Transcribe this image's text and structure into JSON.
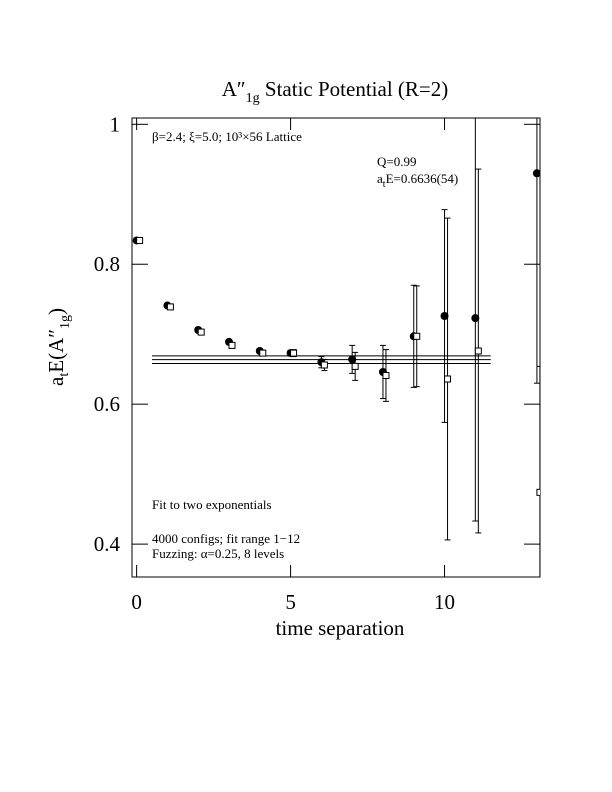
{
  "chart_data": {
    "type": "errorbar",
    "title": {
      "main": "A″",
      "sub": "1g",
      "rest": " Static Potential (R=2)"
    },
    "y_label": {
      "a": "a",
      "t": "t",
      "mid": "E(A″",
      "sub": "1g",
      "end": ")"
    },
    "x_label": "time separation",
    "annotations": {
      "lattice": "β=2.4; ξ=5.0; 10³×56 Lattice",
      "q": "Q=0.99",
      "energy": {
        "a": "a",
        "t": "t",
        "rest": "E=0.6636(54)"
      },
      "fit": "Fit to two exponentials",
      "configs": "4000 configs; fit range 1−12",
      "fuzzing": "Fuzzing: α=0.25, 8 levels"
    },
    "xlim": [
      -0.15,
      13.1
    ],
    "ylim": [
      0.353,
      1.009
    ],
    "xticks": [
      0,
      5,
      10
    ],
    "yticks": [
      0.4,
      0.6,
      0.8,
      1
    ],
    "x": [
      0,
      1,
      2,
      3,
      4,
      5,
      6,
      7,
      8,
      9,
      10,
      11,
      13
    ],
    "series": [
      {
        "marker": "circle",
        "color": "#000000",
        "values": [
          0.834,
          0.741,
          0.706,
          0.689,
          0.676,
          0.673,
          0.66,
          0.664,
          0.646,
          0.697,
          0.726,
          0.723,
          0.93
        ],
        "errors": [
          0.003,
          0.003,
          0.003,
          0.003,
          0.003,
          0.004,
          0.008,
          0.02,
          0.038,
          0.073,
          0.152,
          0.29,
          0.3
        ]
      },
      {
        "marker": "square",
        "color": "#000000",
        "values": [
          0.834,
          0.739,
          0.703,
          0.684,
          0.673,
          0.673,
          0.656,
          0.654,
          0.641,
          0.697,
          0.636,
          0.676,
          0.474
        ],
        "errors": [
          0.003,
          0.003,
          0.003,
          0.004,
          0.004,
          0.005,
          0.008,
          0.02,
          0.037,
          0.072,
          0.23,
          0.26,
          0.18
        ]
      }
    ],
    "fit": {
      "value": 0.6636,
      "error": 0.0054,
      "x": [
        0.5,
        11.5
      ]
    }
  }
}
